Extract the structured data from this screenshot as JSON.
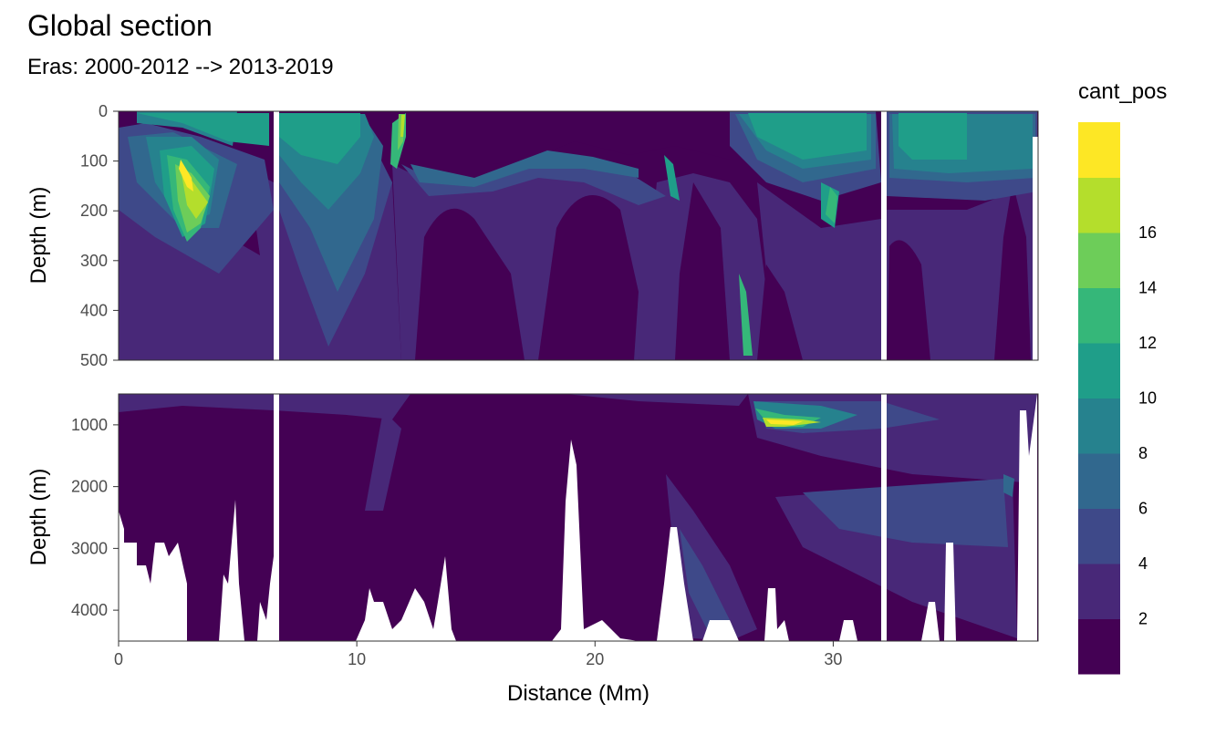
{
  "title": "Global section",
  "subtitle": "Eras: 2000-2012 --> 2013-2019",
  "chart_data": {
    "type": "heatmap",
    "title": "Global section",
    "subtitle": "Eras: 2000-2012 --> 2013-2019",
    "xlabel": "Distance (Mm)",
    "ylabel": "Depth (m)",
    "xlim": [
      0,
      38.6
    ],
    "x_ticks": [
      "0",
      "10",
      "20",
      "30"
    ],
    "panels": [
      {
        "name": "upper",
        "ylim": [
          0,
          500
        ],
        "y_ticks": [
          "0",
          "100",
          "200",
          "300",
          "400",
          "500"
        ],
        "y_reversed": true
      },
      {
        "name": "lower",
        "ylim": [
          500,
          4500
        ],
        "y_ticks": [
          "1000",
          "2000",
          "3000",
          "4000"
        ],
        "y_reversed": true
      }
    ],
    "legend": {
      "title": "cant_pos",
      "position": "right",
      "breaks": [
        "2",
        "4",
        "6",
        "8",
        "10",
        "12",
        "14",
        "16"
      ],
      "colors": [
        "#440154",
        "#482878",
        "#3e4989",
        "#31688e",
        "#26828e",
        "#1f9e89",
        "#35b779",
        "#6dcd59",
        "#b4de2c",
        "#fde725"
      ]
    },
    "data_gaps_x": [
      6.6,
      32.2
    ],
    "grid": true
  }
}
